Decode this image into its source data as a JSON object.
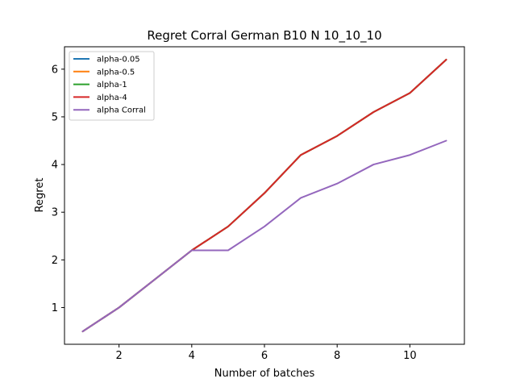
{
  "chart_data": {
    "type": "line",
    "title": "Regret Corral German B10 N 10_10_10",
    "xlabel": "Number of batches",
    "ylabel": "Regret",
    "xlim": [
      0.5,
      11.5
    ],
    "ylim": [
      0.23,
      6.47
    ],
    "xticks": [
      2,
      4,
      6,
      8,
      10
    ],
    "yticks": [
      1,
      2,
      3,
      4,
      5,
      6
    ],
    "grid": false,
    "legend_position": "top-left",
    "x": [
      1,
      2,
      3,
      4,
      5,
      6,
      7,
      8,
      9,
      10,
      11
    ],
    "series": [
      {
        "name": "alpha-0.05",
        "color": "#1f77b4",
        "values": [
          0.5,
          1.0,
          1.6,
          2.2,
          2.7,
          3.4,
          4.2,
          4.6,
          5.1,
          5.5,
          6.2
        ]
      },
      {
        "name": "alpha-0.5",
        "color": "#ff7f0e",
        "values": [
          0.5,
          1.0,
          1.6,
          2.2,
          2.7,
          3.4,
          4.2,
          4.6,
          5.1,
          5.5,
          6.2
        ]
      },
      {
        "name": "alpha-1",
        "color": "#2ca02c",
        "values": [
          0.5,
          1.0,
          1.6,
          2.2,
          2.7,
          3.4,
          4.2,
          4.6,
          5.1,
          5.5,
          6.2
        ]
      },
      {
        "name": "alpha-4",
        "color": "#d62728",
        "values": [
          0.5,
          1.0,
          1.6,
          2.2,
          2.7,
          3.4,
          4.2,
          4.6,
          5.1,
          5.5,
          6.2
        ]
      },
      {
        "name": "alpha Corral",
        "color": "#9467bd",
        "values": [
          0.5,
          1.0,
          1.6,
          2.2,
          2.2,
          2.7,
          3.3,
          3.6,
          4.0,
          4.2,
          4.5
        ]
      }
    ]
  }
}
